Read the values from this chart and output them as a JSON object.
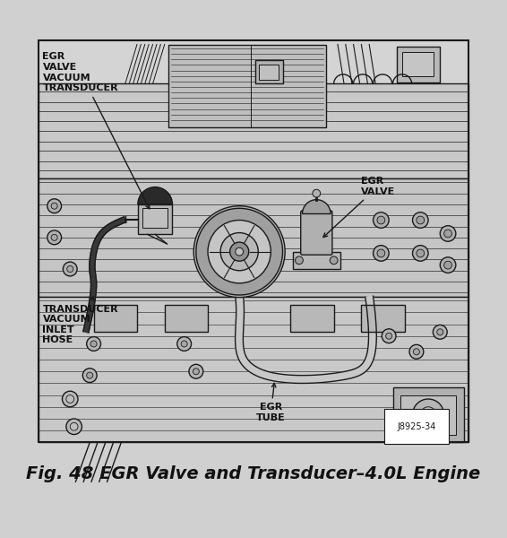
{
  "title": "Fig. 48 EGR Valve and Transducer–4.0L Engine",
  "title_fontsize": 14,
  "title_style": "italic",
  "title_weight": "bold",
  "bg_color": "#d0d0d0",
  "inner_bg": "#c8c8c8",
  "labels": {
    "egr_valve_vacuum_transducer": "EGR\nVALVE\nVACUUM\nTRANSDUCER",
    "egr_valve": "EGR\nVALVE",
    "transducer_vacuum_inlet_hose": "TRANSDUCER\nVACUUM\nINLET\nHOSE",
    "egr_tube": "EGR\nTUBE"
  },
  "ref_number": "J8925-34",
  "line_color": "#1a1a1a",
  "label_fontsize": 8.0,
  "light_gray": "#d8d8d8",
  "mid_gray": "#b8b8b8",
  "dark_gray": "#888888"
}
